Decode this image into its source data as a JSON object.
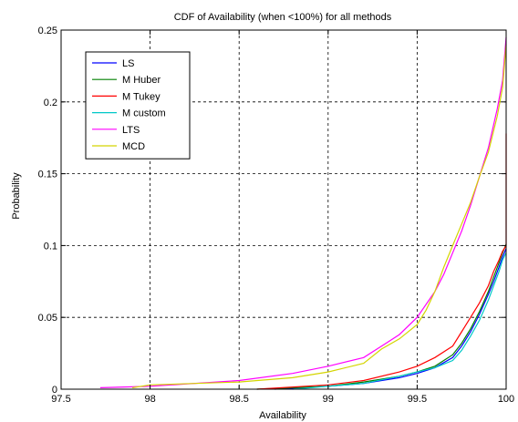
{
  "chart_data": {
    "type": "line",
    "title": "CDF of Availability (when <100%) for all methods",
    "xlabel": "Availability",
    "ylabel": "Probability",
    "xlim": [
      97.5,
      100
    ],
    "ylim": [
      0,
      0.25
    ],
    "xticks": [
      "97.5",
      "98",
      "98.5",
      "99",
      "99.5",
      "100"
    ],
    "yticks": [
      "0",
      "0.05",
      "0.1",
      "0.15",
      "0.2",
      "0.25"
    ],
    "grid": true,
    "legend_position": "top-left",
    "series": [
      {
        "name": "LS",
        "color": "#0000ff",
        "x": [
          98.7,
          99.0,
          99.2,
          99.4,
          99.5,
          99.6,
          99.7,
          99.75,
          99.8,
          99.85,
          99.9,
          99.93,
          99.96,
          99.98,
          100.0
        ],
        "y": [
          0.0,
          0.002,
          0.004,
          0.008,
          0.011,
          0.015,
          0.022,
          0.03,
          0.04,
          0.052,
          0.066,
          0.075,
          0.085,
          0.092,
          0.098
        ]
      },
      {
        "name": "M Huber",
        "color": "#008000",
        "x": [
          98.6,
          99.0,
          99.2,
          99.4,
          99.5,
          99.6,
          99.7,
          99.75,
          99.8,
          99.85,
          99.9,
          99.93,
          99.96,
          99.98,
          100.0
        ],
        "y": [
          0.0,
          0.002,
          0.005,
          0.009,
          0.012,
          0.016,
          0.024,
          0.032,
          0.042,
          0.054,
          0.068,
          0.078,
          0.088,
          0.095,
          0.101
        ]
      },
      {
        "name": "M Tukey",
        "color": "#ff0000",
        "x": [
          98.6,
          99.0,
          99.2,
          99.4,
          99.5,
          99.6,
          99.7,
          99.75,
          99.8,
          99.85,
          99.9,
          99.93,
          99.96,
          99.98,
          100.0,
          100.0
        ],
        "y": [
          0.0,
          0.003,
          0.006,
          0.012,
          0.016,
          0.022,
          0.03,
          0.04,
          0.05,
          0.06,
          0.072,
          0.082,
          0.09,
          0.096,
          0.1,
          0.178
        ]
      },
      {
        "name": "M custom",
        "color": "#00c8c8",
        "x": [
          98.8,
          99.0,
          99.2,
          99.4,
          99.5,
          99.6,
          99.7,
          99.75,
          99.8,
          99.85,
          99.9,
          99.93,
          99.96,
          99.98,
          100.0
        ],
        "y": [
          0.0,
          0.002,
          0.004,
          0.009,
          0.012,
          0.015,
          0.02,
          0.027,
          0.037,
          0.048,
          0.062,
          0.072,
          0.082,
          0.09,
          0.095
        ]
      },
      {
        "name": "LTS",
        "color": "#ff00ff",
        "x": [
          97.72,
          98.0,
          98.5,
          98.8,
          99.0,
          99.2,
          99.3,
          99.4,
          99.5,
          99.6,
          99.65,
          99.7,
          99.75,
          99.8,
          99.85,
          99.9,
          99.95,
          99.98,
          100.0
        ],
        "y": [
          0.001,
          0.002,
          0.006,
          0.011,
          0.016,
          0.022,
          0.03,
          0.038,
          0.05,
          0.068,
          0.08,
          0.095,
          0.11,
          0.128,
          0.148,
          0.168,
          0.195,
          0.215,
          0.245
        ]
      },
      {
        "name": "MCD",
        "color": "#d4d400",
        "x": [
          97.9,
          98.0,
          98.5,
          98.8,
          99.0,
          99.2,
          99.3,
          99.4,
          99.5,
          99.55,
          99.6,
          99.65,
          99.7,
          99.75,
          99.8,
          99.85,
          99.9,
          99.95,
          99.98,
          100.0
        ],
        "y": [
          0.001,
          0.003,
          0.005,
          0.008,
          0.012,
          0.018,
          0.028,
          0.035,
          0.045,
          0.055,
          0.068,
          0.085,
          0.1,
          0.115,
          0.13,
          0.148,
          0.165,
          0.19,
          0.21,
          0.24
        ]
      }
    ]
  }
}
